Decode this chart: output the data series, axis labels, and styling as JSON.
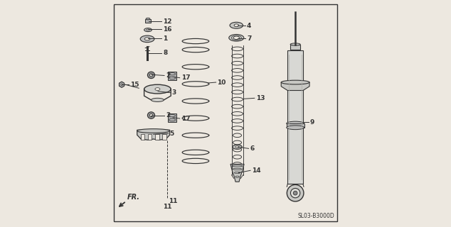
{
  "bg_color": "#ede8e0",
  "border_color": "#333333",
  "diagram_code": "SL03-B3000D",
  "lc": "#333333",
  "label_data": [
    [
      12,
      0.16,
      0.908,
      0.218,
      0.908
    ],
    [
      16,
      0.158,
      0.872,
      0.218,
      0.872
    ],
    [
      1,
      0.158,
      0.832,
      0.218,
      0.832
    ],
    [
      8,
      0.155,
      0.768,
      0.218,
      0.768
    ],
    [
      2,
      0.172,
      0.672,
      0.23,
      0.668
    ],
    [
      17,
      0.268,
      0.662,
      0.298,
      0.658
    ],
    [
      3,
      0.202,
      0.598,
      0.258,
      0.592
    ],
    [
      15,
      0.042,
      0.628,
      0.072,
      0.628
    ],
    [
      2,
      0.172,
      0.492,
      0.23,
      0.492
    ],
    [
      17,
      0.268,
      0.482,
      0.298,
      0.478
    ],
    [
      5,
      0.182,
      0.408,
      0.248,
      0.412
    ],
    [
      11,
      0.242,
      0.112,
      0.242,
      0.112
    ],
    [
      4,
      0.552,
      0.888,
      0.588,
      0.888
    ],
    [
      7,
      0.552,
      0.832,
      0.588,
      0.832
    ],
    [
      10,
      0.422,
      0.635,
      0.458,
      0.638
    ],
    [
      13,
      0.582,
      0.565,
      0.628,
      0.568
    ],
    [
      6,
      0.555,
      0.352,
      0.602,
      0.345
    ],
    [
      14,
      0.558,
      0.238,
      0.61,
      0.248
    ],
    [
      9,
      0.84,
      0.462,
      0.866,
      0.462
    ]
  ]
}
